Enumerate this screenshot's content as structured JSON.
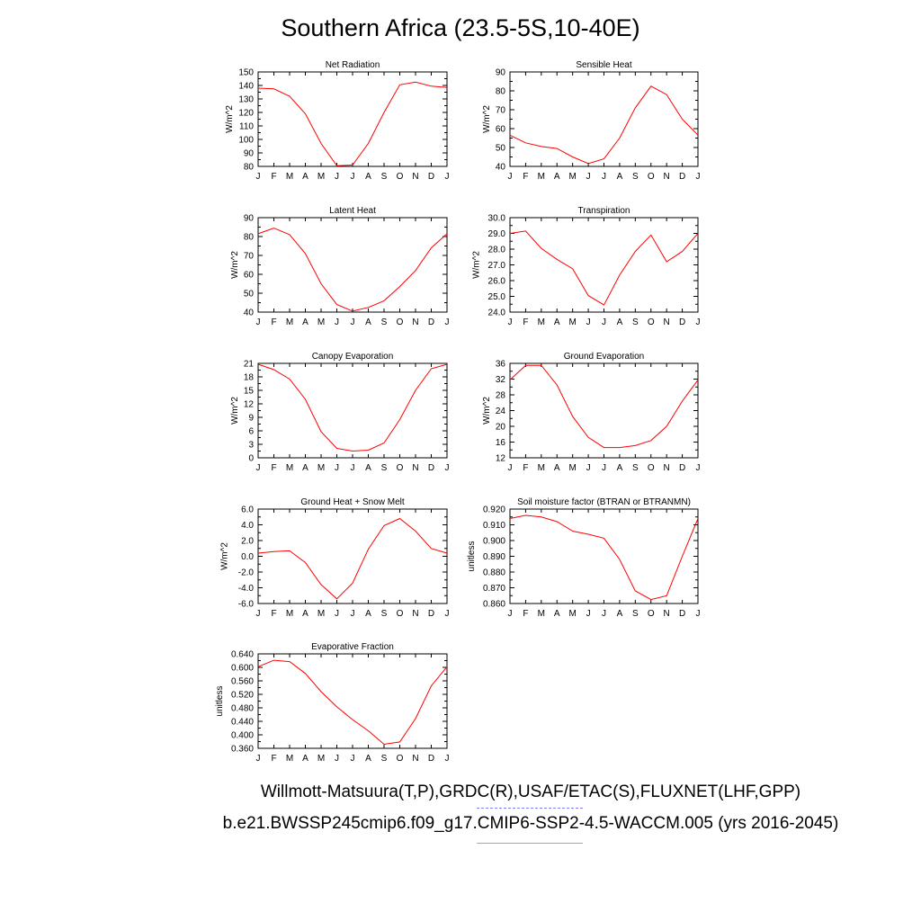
{
  "page": {
    "title": "Southern Africa (23.5-5S,10-40E)",
    "footer_line1": "Willmott-Matsuura(T,P),GRDC(R),USAF/ETAC(S),FLUXNET(LHF,GPP)",
    "footer_line2": "b.e21.BWSSP245cmip6.f09_g17.CMIP6-SSP2-4.5-WACCM.005 (yrs 2016-2045)",
    "series_color": "#ff0000",
    "obs_legend_color": "#8080ff",
    "model_legend_color": "#ff8080"
  },
  "chart_data": [
    {
      "type": "line",
      "title": "Net Radiation",
      "ylabel": "W/m^2",
      "categories": [
        "J",
        "F",
        "M",
        "A",
        "M",
        "J",
        "J",
        "A",
        "S",
        "O",
        "N",
        "D",
        "J"
      ],
      "yticks": [
        "80",
        "90",
        "100",
        "110",
        "120",
        "130",
        "140",
        "150"
      ],
      "ylim": [
        80,
        150
      ],
      "values": [
        138,
        137.5,
        132,
        119,
        97,
        80.5,
        81,
        97,
        120,
        140.5,
        142.5,
        139.5,
        138.5
      ]
    },
    {
      "type": "line",
      "title": "Sensible Heat",
      "ylabel": "W/m^2",
      "categories": [
        "J",
        "F",
        "M",
        "A",
        "M",
        "J",
        "J",
        "A",
        "S",
        "O",
        "N",
        "D",
        "J"
      ],
      "yticks": [
        "40",
        "50",
        "60",
        "70",
        "80",
        "90"
      ],
      "ylim": [
        40,
        90
      ],
      "values": [
        56.5,
        52.5,
        50.5,
        49.5,
        45,
        41.5,
        44,
        55,
        71,
        82.5,
        78,
        65,
        56.5
      ]
    },
    {
      "type": "line",
      "title": "Latent Heat",
      "ylabel": "W/m^2",
      "categories": [
        "J",
        "F",
        "M",
        "A",
        "M",
        "J",
        "J",
        "A",
        "S",
        "O",
        "N",
        "D",
        "J"
      ],
      "yticks": [
        "40",
        "50",
        "60",
        "70",
        "80",
        "90"
      ],
      "ylim": [
        40,
        90
      ],
      "values": [
        81.5,
        84.5,
        81,
        71,
        55,
        44,
        40.5,
        42.5,
        46,
        53.5,
        62,
        74,
        81.5
      ]
    },
    {
      "type": "line",
      "title": "Transpiration",
      "ylabel": "W/m^2",
      "categories": [
        "J",
        "F",
        "M",
        "A",
        "M",
        "J",
        "J",
        "A",
        "S",
        "O",
        "N",
        "D",
        "J"
      ],
      "yticks": [
        "24.0",
        "25.0",
        "26.0",
        "27.0",
        "28.0",
        "29.0",
        "30.0"
      ],
      "ylim": [
        24,
        30
      ],
      "values": [
        29,
        29.15,
        28.05,
        27.35,
        26.75,
        25.05,
        24.45,
        26.35,
        27.85,
        28.9,
        27.2,
        27.85,
        29
      ]
    },
    {
      "type": "line",
      "title": "Canopy Evaporation",
      "ylabel": "W/m^2",
      "categories": [
        "J",
        "F",
        "M",
        "A",
        "M",
        "J",
        "J",
        "A",
        "S",
        "O",
        "N",
        "D",
        "J"
      ],
      "yticks": [
        "0",
        "3",
        "6",
        "9",
        "12",
        "15",
        "18",
        "21"
      ],
      "ylim": [
        0,
        21
      ],
      "values": [
        20.8,
        19.6,
        17.5,
        13,
        5.8,
        2.1,
        1.5,
        1.7,
        3.3,
        8.5,
        15,
        19.8,
        20.8
      ]
    },
    {
      "type": "line",
      "title": "Ground Evaporation",
      "ylabel": "W/m^2",
      "categories": [
        "J",
        "F",
        "M",
        "A",
        "M",
        "J",
        "J",
        "A",
        "S",
        "O",
        "N",
        "D",
        "J"
      ],
      "yticks": [
        "12",
        "16",
        "20",
        "24",
        "28",
        "32",
        "36"
      ],
      "ylim": [
        12,
        36
      ],
      "values": [
        31.8,
        35.5,
        35.5,
        30.5,
        22.5,
        17.2,
        14.6,
        14.6,
        15.1,
        16.4,
        20,
        26.4,
        31.8
      ]
    },
    {
      "type": "line",
      "title": "Ground Heat + Snow Melt",
      "ylabel": "W/m^2",
      "categories": [
        "J",
        "F",
        "M",
        "A",
        "M",
        "J",
        "J",
        "A",
        "S",
        "O",
        "N",
        "D",
        "J"
      ],
      "yticks": [
        "-6.0",
        "-4.0",
        "-2.0",
        "0.0",
        "2.0",
        "4.0",
        "6.0"
      ],
      "ylim": [
        -6,
        6
      ],
      "values": [
        0.4,
        0.6,
        0.7,
        -0.8,
        -3.6,
        -5.4,
        -3.4,
        0.9,
        3.9,
        4.8,
        3.2,
        1.0,
        0.4
      ]
    },
    {
      "type": "line",
      "title": "Soil moisture factor (BTRAN or BTRANMN)",
      "ylabel": "unitless",
      "categories": [
        "J",
        "F",
        "M",
        "A",
        "M",
        "J",
        "J",
        "A",
        "S",
        "O",
        "N",
        "D",
        "J"
      ],
      "yticks": [
        "0.860",
        "0.870",
        "0.880",
        "0.890",
        "0.900",
        "0.910",
        "0.920"
      ],
      "ylim": [
        0.86,
        0.92
      ],
      "values": [
        0.914,
        0.916,
        0.915,
        0.912,
        0.906,
        0.904,
        0.9015,
        0.888,
        0.868,
        0.8625,
        0.865,
        0.89,
        0.914
      ]
    },
    {
      "type": "line",
      "title": "Evaporative Fraction",
      "ylabel": "unitless",
      "categories": [
        "J",
        "F",
        "M",
        "A",
        "M",
        "J",
        "J",
        "A",
        "S",
        "O",
        "N",
        "D",
        "J"
      ],
      "yticks": [
        "0.360",
        "0.400",
        "0.440",
        "0.480",
        "0.520",
        "0.560",
        "0.600",
        "0.640"
      ],
      "ylim": [
        0.36,
        0.64
      ],
      "values": [
        0.602,
        0.621,
        0.617,
        0.582,
        0.528,
        0.483,
        0.445,
        0.412,
        0.372,
        0.379,
        0.448,
        0.545,
        0.602
      ]
    }
  ]
}
